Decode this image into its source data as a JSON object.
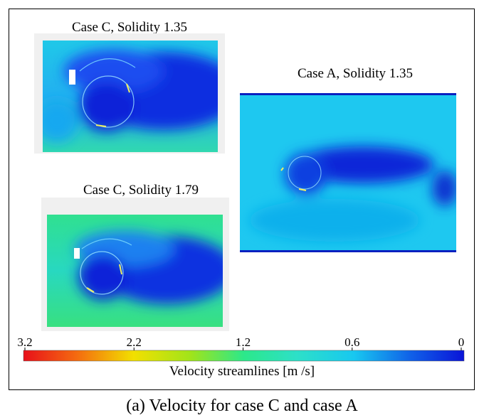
{
  "figure": {
    "panels": [
      {
        "title": "Case C, Solidity 1.35"
      },
      {
        "title": "Case A, Solidity 1.35"
      },
      {
        "title": "Case C, Solidity 1.79"
      }
    ],
    "colorbar": {
      "ticks": [
        3.2,
        2.2,
        1.2,
        0.6,
        0
      ],
      "label": "Velocity streamlines [m /s]"
    },
    "caption": "(a) Velocity for case C and case A"
  }
}
